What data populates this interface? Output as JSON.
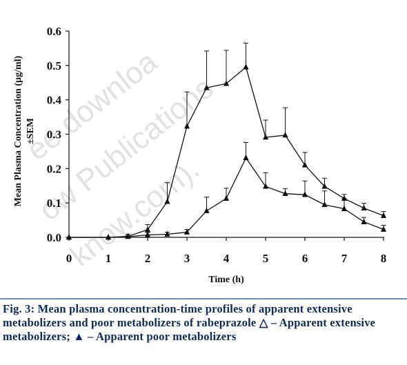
{
  "watermark": {
    "lines": [
      "ee downloa",
      "ow Publications",
      "know.com)."
    ]
  },
  "caption": {
    "figure_label": "Fig. 3:",
    "text_1": " Mean plasma concentration-time profiles of apparent extensive metabolizers and poor metabolizers of rabeprazole ",
    "open_triangle_symbol": "△",
    "text_2": " – Apparent extensive metabolizers; ",
    "filled_triangle_symbol": "▲",
    "text_3": " – Apparent poor metabolizers"
  },
  "chart_data": {
    "type": "line",
    "xlabel": "Time (h)",
    "ylabel_line1": "Mean Plasma Concentration (µg/ml)",
    "ylabel_line2": "±SEM",
    "xlim": [
      0,
      8
    ],
    "ylim": [
      0,
      0.6
    ],
    "x_ticks": [
      "0",
      "1",
      "2",
      "3",
      "4",
      "5",
      "6",
      "7",
      "8"
    ],
    "y_ticks": [
      "0.0",
      "0.1",
      "0.2",
      "0.3",
      "0.4",
      "0.5",
      "0.6"
    ],
    "grid": false,
    "series": [
      {
        "x": [
          0,
          1,
          1.5,
          2,
          2.5,
          3,
          3.5,
          4,
          4.5,
          5,
          5.5,
          6,
          6.5,
          7,
          7.5,
          8
        ],
        "values": [
          0.0,
          0.0,
          0.003,
          0.022,
          0.104,
          0.323,
          0.435,
          0.447,
          0.495,
          0.291,
          0.297,
          0.21,
          0.148,
          0.113,
          0.085,
          0.063
        ],
        "sem": [
          0,
          0,
          0.006,
          0.015,
          0.055,
          0.1,
          0.107,
          0.097,
          0.07,
          0.05,
          0.08,
          0.037,
          0.024,
          0.012,
          0.014,
          0.012
        ]
      },
      {
        "x": [
          0,
          1,
          1.5,
          2,
          2.5,
          3,
          3.5,
          4,
          4.5,
          5,
          5.5,
          6,
          6.5,
          7,
          7.5,
          8
        ],
        "values": [
          0.0,
          0.0,
          0.002,
          0.007,
          0.009,
          0.015,
          0.077,
          0.113,
          0.231,
          0.148,
          0.127,
          0.124,
          0.095,
          0.083,
          0.045,
          0.023
        ],
        "sem": [
          0,
          0,
          0.003,
          0.007,
          0.006,
          0.008,
          0.04,
          0.03,
          0.045,
          0.04,
          0.015,
          0.04,
          0.04,
          0.03,
          0.013,
          0.012
        ]
      }
    ]
  }
}
